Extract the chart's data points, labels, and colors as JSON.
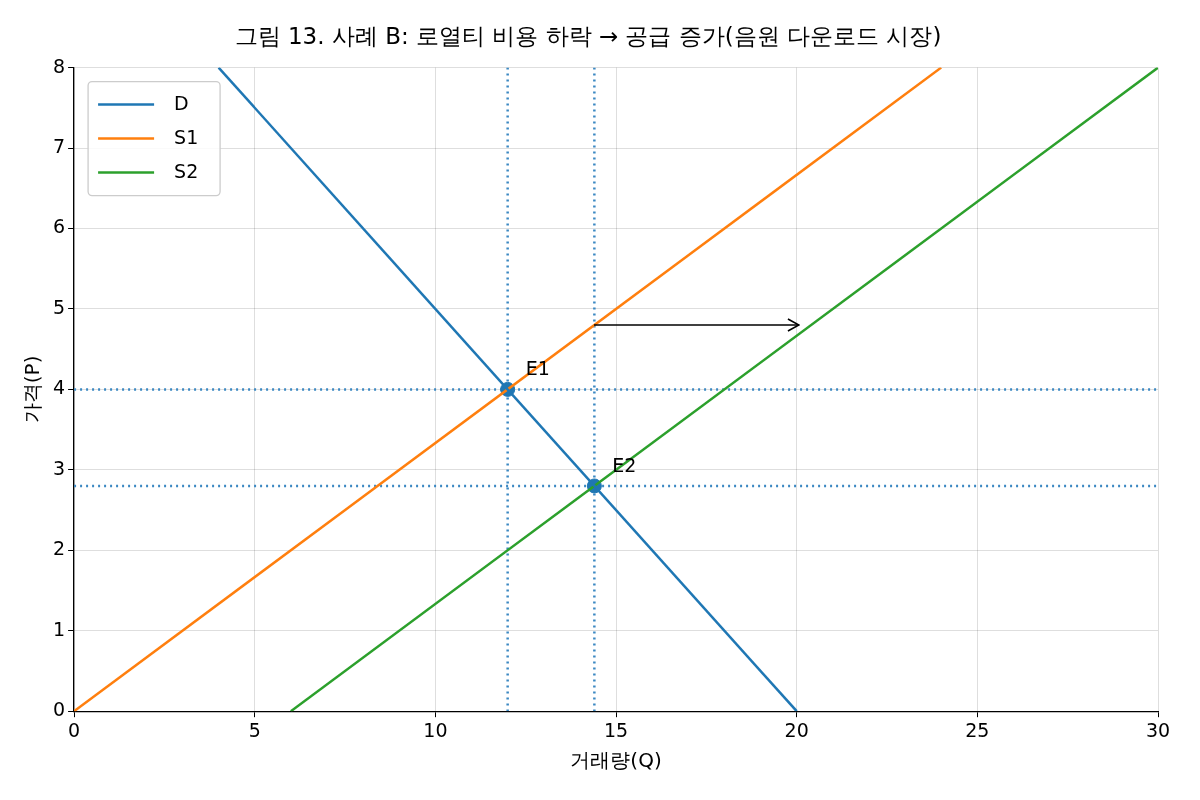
{
  "chart_data": {
    "type": "line",
    "title": "그림 13. 사례 B: 로열티 비용 하락 → 공급 증가(음원 다운로드 시장)",
    "xlabel": "거래량(Q)",
    "ylabel": "가격(P)",
    "series": [
      {
        "name": "D",
        "color": "#1f77b4",
        "x": [
          4,
          20
        ],
        "values": [
          8,
          0
        ]
      },
      {
        "name": "S1",
        "color": "#ff7f0e",
        "x": [
          0,
          24
        ],
        "values": [
          0,
          8
        ]
      },
      {
        "name": "S2",
        "color": "#2ca02c",
        "x": [
          6,
          30
        ],
        "values": [
          0,
          8
        ]
      },
      {
        "type": "scatter",
        "color": "#1f77b4",
        "x": [
          12,
          14.4
        ],
        "values": [
          4,
          2.8
        ],
        "marker": "circle"
      }
    ],
    "annotations": [
      {
        "text": "E1",
        "x": 12,
        "y": 4
      },
      {
        "text": "E2",
        "x": 14.4,
        "y": 2.8
      }
    ],
    "ref_lines": [
      {
        "axis": "x",
        "value": 12,
        "color": "#3b88c2",
        "line_style": "dotted"
      },
      {
        "axis": "x",
        "value": 14.4,
        "color": "#3b88c2",
        "line_style": "dotted"
      },
      {
        "axis": "y",
        "value": 4,
        "color": "#3b88c2",
        "line_style": "dotted"
      },
      {
        "axis": "y",
        "value": 2.8,
        "color": "#3b88c2",
        "line_style": "dotted"
      }
    ],
    "xlim": [
      0,
      30
    ],
    "xticks": [
      0,
      5,
      10,
      15,
      20,
      25,
      30
    ],
    "ylim": [
      0,
      8
    ],
    "yticks": [
      0,
      1,
      2,
      3,
      4,
      5,
      6,
      7,
      8
    ],
    "grid": true,
    "legend": "top left"
  }
}
